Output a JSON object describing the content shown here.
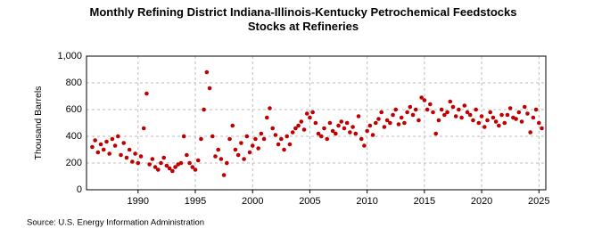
{
  "chart_data": {
    "type": "scatter",
    "title": "Monthly Refining District Indiana-Illinois-Kentucky Petrochemical Feedstocks Stocks at Refineries",
    "y_label": "Thousand Barrels",
    "source": "Source: U.S. Energy Information Administration",
    "color": "#c00000",
    "grid": true,
    "xlim": [
      1985.5,
      2025.6
    ],
    "xticks": [
      1990,
      1995,
      2000,
      2005,
      2010,
      2015,
      2020,
      2025
    ],
    "ylim": [
      0,
      1000
    ],
    "yticks": [
      0,
      200,
      400,
      600,
      800,
      {
        "value": 1000,
        "label": "1,000"
      }
    ],
    "x": [
      1986,
      1986.25,
      1986.5,
      1986.75,
      1987,
      1987.25,
      1987.5,
      1987.75,
      1988,
      1988.25,
      1988.5,
      1988.75,
      1989,
      1989.25,
      1989.5,
      1989.75,
      1990,
      1990.25,
      1990.5,
      1990.75,
      1991,
      1991.25,
      1991.5,
      1991.75,
      1992,
      1992.25,
      1992.5,
      1992.75,
      1993,
      1993.25,
      1993.5,
      1993.75,
      1994,
      1994.25,
      1994.5,
      1994.75,
      1995,
      1995.25,
      1995.5,
      1995.75,
      1996,
      1996.25,
      1996.5,
      1996.75,
      1997,
      1997.25,
      1997.5,
      1997.75,
      1998,
      1998.25,
      1998.5,
      1998.75,
      1999,
      1999.25,
      1999.5,
      1999.75,
      2000,
      2000.25,
      2000.5,
      2000.75,
      2001,
      2001.25,
      2001.5,
      2001.75,
      2002,
      2002.25,
      2002.5,
      2002.75,
      2003,
      2003.25,
      2003.5,
      2003.75,
      2004,
      2004.25,
      2004.5,
      2004.75,
      2005,
      2005.25,
      2005.5,
      2005.75,
      2006,
      2006.25,
      2006.5,
      2006.75,
      2007,
      2007.25,
      2007.5,
      2007.75,
      2008,
      2008.25,
      2008.5,
      2008.75,
      2009,
      2009.25,
      2009.5,
      2009.75,
      2010,
      2010.25,
      2010.5,
      2010.75,
      2011,
      2011.25,
      2011.5,
      2011.75,
      2012,
      2012.25,
      2012.5,
      2012.75,
      2013,
      2013.25,
      2013.5,
      2013.75,
      2014,
      2014.25,
      2014.5,
      2014.75,
      2015,
      2015.25,
      2015.5,
      2015.75,
      2016,
      2016.25,
      2016.5,
      2016.75,
      2017,
      2017.25,
      2017.5,
      2017.75,
      2018,
      2018.25,
      2018.5,
      2018.75,
      2019,
      2019.25,
      2019.5,
      2019.75,
      2020,
      2020.25,
      2020.5,
      2020.75,
      2021,
      2021.25,
      2021.5,
      2021.75,
      2022,
      2022.25,
      2022.5,
      2022.75,
      2023,
      2023.25,
      2023.5,
      2023.75,
      2024,
      2024.25,
      2024.5,
      2024.75,
      2025,
      2025.25
    ],
    "values": [
      320,
      370,
      280,
      340,
      300,
      360,
      270,
      380,
      330,
      400,
      260,
      350,
      240,
      300,
      210,
      270,
      200,
      250,
      460,
      720,
      190,
      230,
      170,
      150,
      200,
      240,
      180,
      160,
      140,
      170,
      190,
      200,
      400,
      260,
      200,
      170,
      150,
      220,
      380,
      600,
      880,
      760,
      400,
      250,
      300,
      230,
      110,
      200,
      380,
      480,
      300,
      260,
      350,
      230,
      400,
      280,
      330,
      380,
      310,
      420,
      380,
      540,
      610,
      460,
      410,
      340,
      380,
      300,
      400,
      340,
      430,
      460,
      480,
      510,
      450,
      570,
      540,
      580,
      500,
      420,
      400,
      460,
      380,
      500,
      440,
      420,
      480,
      510,
      460,
      500,
      430,
      470,
      420,
      550,
      380,
      330,
      440,
      480,
      410,
      500,
      530,
      580,
      470,
      520,
      500,
      560,
      600,
      490,
      540,
      500,
      580,
      620,
      560,
      600,
      520,
      690,
      670,
      600,
      640,
      580,
      420,
      520,
      600,
      560,
      580,
      660,
      620,
      550,
      600,
      540,
      630,
      580,
      560,
      520,
      600,
      500,
      550,
      470,
      520,
      580,
      540,
      510,
      480,
      560,
      500,
      560,
      610,
      540,
      530,
      580,
      510,
      620,
      570,
      430,
      540,
      600,
      500,
      460
    ]
  }
}
